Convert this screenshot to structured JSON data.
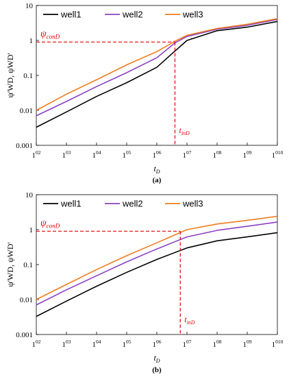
{
  "chart_data": [
    {
      "type": "line",
      "panel_label": "(a)",
      "xscale": "log",
      "yscale": "log",
      "xlim": [
        100,
        10000000000
      ],
      "ylim": [
        0.001,
        10
      ],
      "xlabel": "tD",
      "ylabel": "ψ'WD, ψWD'",
      "x_tick_labels": [
        "102",
        "103",
        "104",
        "105",
        "106",
        "107",
        "108",
        "109",
        "1010"
      ],
      "y_tick_labels": [
        "0.001",
        "0.01",
        "0.1",
        "1",
        "10"
      ],
      "legend": "top-left",
      "grid": false,
      "annotations": {
        "psi_label": "ψconD",
        "psi_value": 0.9,
        "t_label": "tinD",
        "t_value": 4000000
      },
      "series": [
        {
          "name": "well1",
          "color": "#000000",
          "x": [
            100,
            1000,
            10000,
            100000,
            1000000,
            3000000,
            10000000,
            100000000,
            1000000000,
            10000000000
          ],
          "y": [
            0.0033,
            0.009,
            0.025,
            0.062,
            0.17,
            0.4,
            1.0,
            1.9,
            2.4,
            3.5
          ]
        },
        {
          "name": "well2",
          "color": "#8b3fc4",
          "x": [
            100,
            1000,
            10000,
            100000,
            1000000,
            4000000,
            10000000,
            100000000,
            1000000000,
            10000000000
          ],
          "y": [
            0.007,
            0.018,
            0.048,
            0.12,
            0.32,
            0.85,
            1.3,
            2.1,
            2.7,
            4.0
          ]
        },
        {
          "name": "well3",
          "color": "#f07b1d",
          "x": [
            100,
            1000,
            10000,
            100000,
            1000000,
            4000000,
            10000000,
            100000000,
            1000000000,
            10000000000
          ],
          "y": [
            0.01,
            0.029,
            0.075,
            0.2,
            0.48,
            0.95,
            1.4,
            2.2,
            2.9,
            4.2
          ]
        }
      ]
    },
    {
      "type": "line",
      "panel_label": "(b)",
      "xscale": "log",
      "yscale": "log",
      "xlim": [
        100,
        10000000000
      ],
      "ylim": [
        0.001,
        10
      ],
      "xlabel": "tD",
      "ylabel": "ψ'WD, ψWD'",
      "x_tick_labels": [
        "102",
        "103",
        "104",
        "105",
        "106",
        "107",
        "108",
        "109",
        "1010"
      ],
      "y_tick_labels": [
        "0.001",
        "0.01",
        "0.1",
        "1",
        "10"
      ],
      "legend": "top-left",
      "grid": false,
      "annotations": {
        "psi_label": "ψconD",
        "psi_value": 0.9,
        "t_label": "tinD",
        "t_value": 6000000
      },
      "series": [
        {
          "name": "well1",
          "color": "#000000",
          "x": [
            100,
            1000,
            10000,
            100000,
            1000000,
            10000000,
            100000000,
            1000000000,
            10000000000
          ],
          "y": [
            0.0033,
            0.009,
            0.024,
            0.06,
            0.14,
            0.3,
            0.48,
            0.62,
            0.82
          ]
        },
        {
          "name": "well2",
          "color": "#8b3fc4",
          "x": [
            100,
            1000,
            10000,
            100000,
            1000000,
            10000000,
            100000000,
            1000000000,
            10000000000
          ],
          "y": [
            0.007,
            0.019,
            0.048,
            0.12,
            0.28,
            0.62,
            0.95,
            1.25,
            1.65
          ]
        },
        {
          "name": "well3",
          "color": "#f07b1d",
          "x": [
            100,
            1000,
            10000,
            100000,
            1000000,
            10000000,
            100000000,
            1000000000,
            10000000000
          ],
          "y": [
            0.01,
            0.027,
            0.072,
            0.18,
            0.42,
            1.0,
            1.45,
            1.85,
            2.4
          ]
        }
      ]
    }
  ]
}
